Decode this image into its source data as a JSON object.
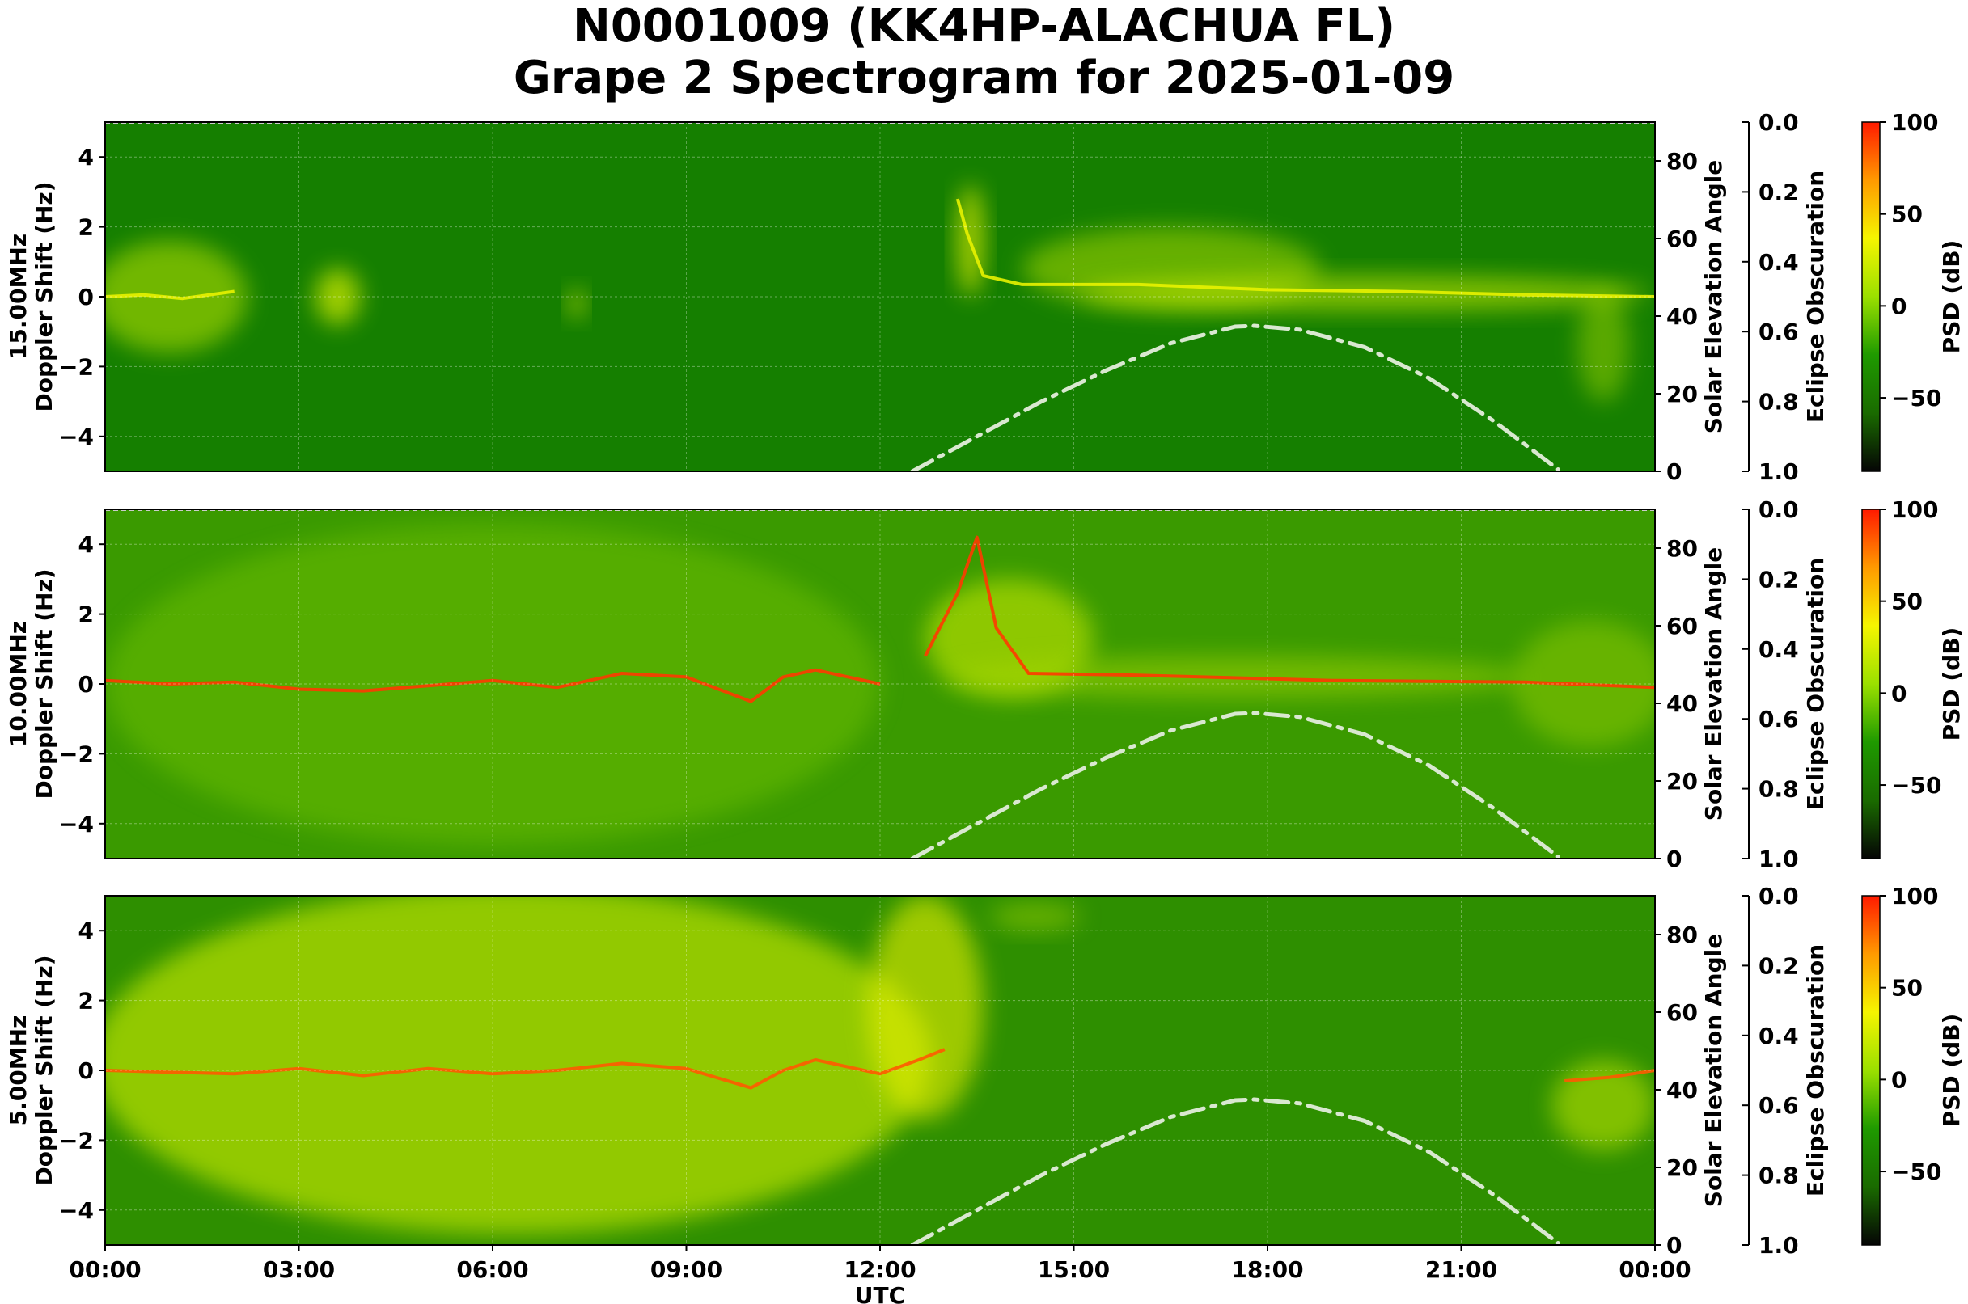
{
  "title_line1": "N0001009 (KK4HP-ALACHUA FL)",
  "title_line2": "Grape 2 Spectrogram for 2025-01-09",
  "chart_data": {
    "type": "heatmap",
    "title": "N0001009 (KK4HP-ALACHUA FL)\nGrape 2 Spectrogram for 2025-01-09",
    "xlabel": "UTC",
    "x_ticks": [
      "00:00",
      "03:00",
      "06:00",
      "09:00",
      "12:00",
      "15:00",
      "18:00",
      "21:00",
      "00:00"
    ],
    "x_range_hours": [
      0,
      24
    ],
    "y_axis": {
      "ticks": [
        -4,
        -2,
        0,
        2,
        4
      ],
      "ylim": [
        -5,
        5
      ]
    },
    "elevation_axis": {
      "label": "Solar Elevation Angle",
      "ticks": [
        0,
        20,
        40,
        60,
        80
      ],
      "ylim": [
        0,
        90
      ]
    },
    "eclipse_axis": {
      "label": "Eclipse Obscuration",
      "ticks": [
        "0.0",
        "0.2",
        "0.4",
        "0.6",
        "0.8",
        "1.0"
      ],
      "ylim": [
        0,
        1
      ],
      "inverted": true
    },
    "colorbar": {
      "label": "PSD (dB)",
      "ticks": [
        100,
        50,
        0,
        -50
      ],
      "range": [
        -90,
        100
      ],
      "colors": [
        "#050505",
        "#1a6b00",
        "#1f9a00",
        "#9be000",
        "#f5f500",
        "#ff9a00",
        "#ff1a00"
      ]
    },
    "grid": true,
    "solar_elevation": {
      "style": "dash-dot",
      "color": "#d9e8d0",
      "points": [
        [
          12.5,
          0
        ],
        [
          13.5,
          9
        ],
        [
          14.5,
          18
        ],
        [
          15.5,
          26
        ],
        [
          16.5,
          33
        ],
        [
          17.5,
          37.3
        ],
        [
          17.8,
          37.5
        ],
        [
          18.5,
          36.5
        ],
        [
          19.5,
          32
        ],
        [
          20.5,
          24
        ],
        [
          21.5,
          13
        ],
        [
          22.5,
          0.5
        ]
      ]
    },
    "panels": [
      {
        "name": "15.00MHz",
        "ylabel_line1": "15.00MHz",
        "ylabel_line2": "Doppler Shift (Hz)",
        "background": "#157f00",
        "blobs": [
          [
            1.0,
            0,
            1.2,
            1.6,
            "#bde500",
            0.55
          ],
          [
            3.6,
            0,
            0.35,
            0.8,
            "#d8ef00",
            0.7
          ],
          [
            7.3,
            -0.2,
            0.12,
            0.4,
            "#d8ef00",
            0.7
          ],
          [
            13.4,
            1.6,
            0.2,
            1.6,
            "#e5f000",
            0.7
          ],
          [
            16.5,
            0.8,
            2.3,
            1.2,
            "#a8d800",
            0.55
          ],
          [
            19.5,
            0.1,
            4.4,
            0.5,
            "#c6e800",
            0.6
          ],
          [
            23.2,
            -1.4,
            0.4,
            1.6,
            "#9ed300",
            0.5
          ]
        ],
        "traces": [
          [
            [
              0,
              0
            ],
            [
              0.6,
              0.05
            ],
            [
              1.2,
              -0.05
            ],
            [
              2.0,
              0.15
            ]
          ],
          [
            [
              13.2,
              2.8
            ],
            [
              13.35,
              1.8
            ],
            [
              13.6,
              0.6
            ],
            [
              14.2,
              0.35
            ],
            [
              16,
              0.35
            ],
            [
              18,
              0.2
            ],
            [
              20,
              0.15
            ],
            [
              22,
              0.05
            ],
            [
              24,
              0
            ]
          ]
        ],
        "trace_color": "#e8f200"
      },
      {
        "name": "10.00MHz",
        "ylabel_line1": "10.00MHz",
        "ylabel_line2": "Doppler Shift (Hz)",
        "background": "#3a9a00",
        "blobs": [
          [
            6.0,
            0,
            6.0,
            4.6,
            "#6cbd00",
            0.55
          ],
          [
            14.0,
            1.3,
            1.3,
            1.7,
            "#c6e800",
            0.6
          ],
          [
            17.5,
            0.2,
            4.5,
            0.6,
            "#a8d800",
            0.5
          ],
          [
            23.0,
            0,
            1.2,
            1.8,
            "#9ed300",
            0.45
          ]
        ],
        "traces": [
          [
            [
              0,
              0.1
            ],
            [
              1,
              0
            ],
            [
              2,
              0.05
            ],
            [
              3,
              -0.15
            ],
            [
              4,
              -0.2
            ],
            [
              5,
              -0.05
            ],
            [
              6,
              0.1
            ],
            [
              7,
              -0.1
            ],
            [
              8,
              0.3
            ],
            [
              9,
              0.2
            ],
            [
              10,
              -0.5
            ],
            [
              10.5,
              0.2
            ],
            [
              11,
              0.4
            ],
            [
              12,
              0
            ]
          ],
          [
            [
              12.7,
              0.8
            ],
            [
              13.2,
              2.6
            ],
            [
              13.5,
              4.2
            ],
            [
              13.8,
              1.6
            ],
            [
              14.3,
              0.3
            ],
            [
              16,
              0.25
            ],
            [
              19,
              0.1
            ],
            [
              22,
              0.05
            ],
            [
              24,
              -0.1
            ]
          ]
        ],
        "trace_color": "#ff3a00"
      },
      {
        "name": "5.00MHz",
        "ylabel_line1": "5.00MHz",
        "ylabel_line2": "Doppler Shift (Hz)",
        "background": "#2e8f00",
        "blobs": [
          [
            6.3,
            0.3,
            6.5,
            5.0,
            "#b4dd00",
            0.75
          ],
          [
            12.7,
            1.8,
            0.9,
            3.2,
            "#e8f000",
            0.6
          ],
          [
            14.4,
            4.4,
            0.7,
            0.4,
            "#9ed300",
            0.5
          ],
          [
            23.2,
            -1.0,
            0.8,
            1.3,
            "#c6e800",
            0.55
          ]
        ],
        "traces": [
          [
            [
              0,
              0
            ],
            [
              1,
              -0.05
            ],
            [
              2,
              -0.1
            ],
            [
              3,
              0.05
            ],
            [
              4,
              -0.15
            ],
            [
              5,
              0.05
            ],
            [
              6,
              -0.1
            ],
            [
              7,
              0
            ],
            [
              8,
              0.2
            ],
            [
              9,
              0.05
            ],
            [
              10,
              -0.5
            ],
            [
              10.5,
              0
            ],
            [
              11,
              0.3
            ],
            [
              12,
              -0.1
            ],
            [
              12.6,
              0.3
            ],
            [
              13.0,
              0.6
            ]
          ],
          [
            [
              22.6,
              -0.3
            ],
            [
              23.3,
              -0.2
            ],
            [
              24,
              0
            ]
          ]
        ],
        "trace_color": "#ff5a00"
      }
    ]
  }
}
